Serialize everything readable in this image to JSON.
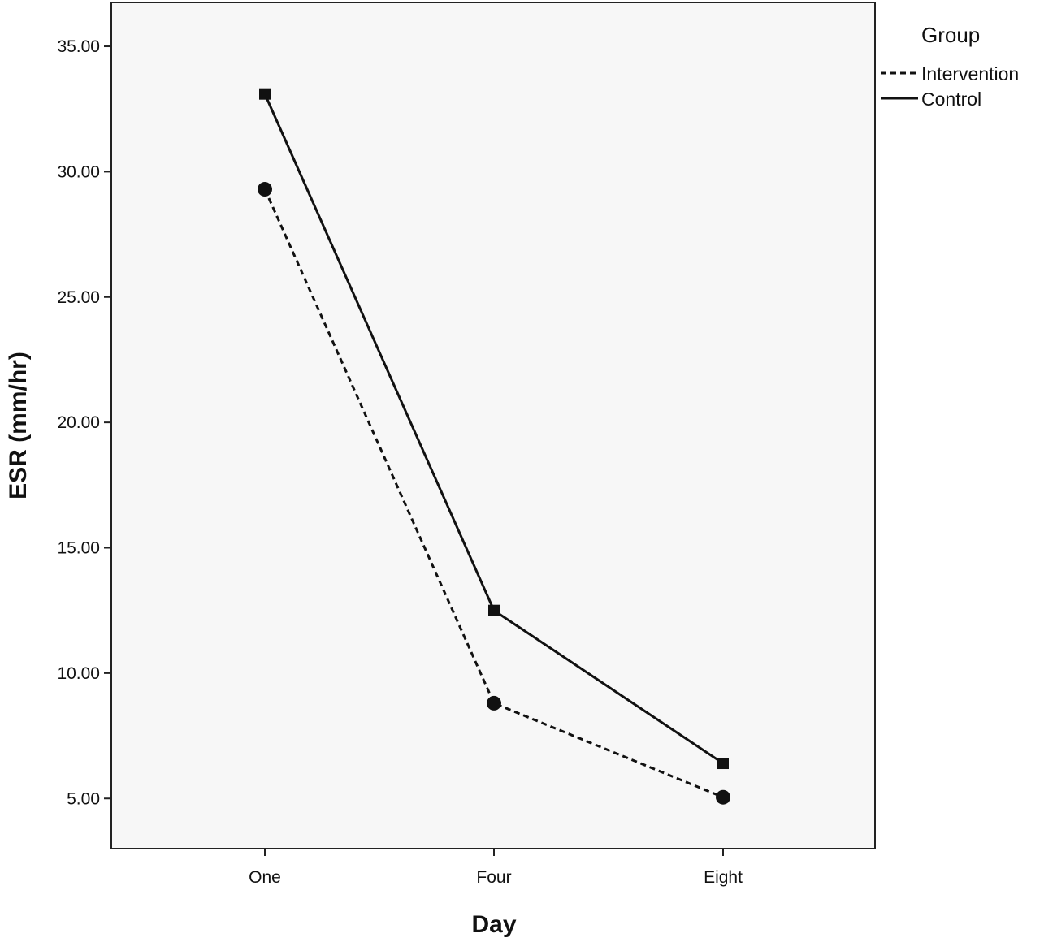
{
  "chart_data": {
    "type": "line",
    "title": "",
    "xlabel": "Day",
    "ylabel": "ESR (mm/hr)",
    "categories": [
      "One",
      "Four",
      "Eight"
    ],
    "y_ticks": [
      "5.00",
      "10.00",
      "15.00",
      "20.00",
      "25.00",
      "30.00",
      "35.00"
    ],
    "ylim": [
      3.0,
      36.75
    ],
    "grid": false,
    "legend": {
      "title": "Group",
      "placement": "top-right outside plot"
    },
    "series": [
      {
        "name": "Intervention",
        "values": [
          29.3,
          8.8,
          5.05
        ],
        "line_style": "dashed",
        "marker": "circle",
        "color": "#111111"
      },
      {
        "name": "Control",
        "values": [
          33.1,
          12.5,
          6.4
        ],
        "line_style": "solid",
        "marker": "square",
        "color": "#111111"
      }
    ],
    "plot_background": "#f7f7f7"
  }
}
